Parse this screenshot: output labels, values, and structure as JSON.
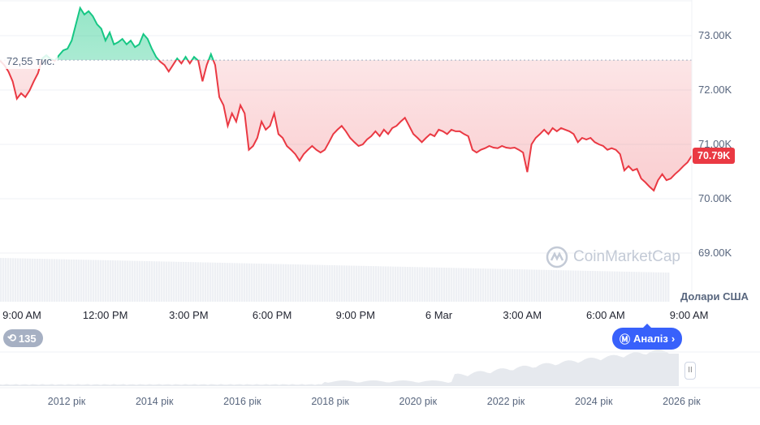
{
  "chart_data": {
    "type": "line",
    "baseline": 72.55,
    "baseline_label": "72,55 тис.",
    "current_price_label": "70.79K",
    "y_ticks": [
      {
        "v": 73,
        "label": "73.00K"
      },
      {
        "v": 72,
        "label": "72.00K"
      },
      {
        "v": 71,
        "label": "71.00K"
      },
      {
        "v": 70,
        "label": "70.00K"
      },
      {
        "v": 69,
        "label": "69.00K"
      }
    ],
    "ylim": [
      68.9,
      73.6
    ],
    "x_ticks": [
      "9:00 AM",
      "12:00 PM",
      "3:00 PM",
      "6:00 PM",
      "9:00 PM",
      "6 Mar",
      "3:00 AM",
      "6:00 AM",
      "9:00 AM"
    ],
    "unit_label": "Долари США",
    "grid": true,
    "colors": {
      "up": "#16c784",
      "down": "#ea3943"
    },
    "prices": [
      72.54,
      72.46,
      72.34,
      72.16,
      71.84,
      71.94,
      71.87,
      71.99,
      72.16,
      72.31,
      72.58,
      72.64,
      72.57,
      72.54,
      72.64,
      72.73,
      72.76,
      72.91,
      73.21,
      73.51,
      73.39,
      73.45,
      73.36,
      73.21,
      73.13,
      72.91,
      73.06,
      72.84,
      72.88,
      72.94,
      72.84,
      72.91,
      72.79,
      72.84,
      73.03,
      72.94,
      72.76,
      72.61,
      72.52,
      72.46,
      72.34,
      72.46,
      72.58,
      72.49,
      72.61,
      72.49,
      72.61,
      72.54,
      72.16,
      72.46,
      72.66,
      72.46,
      71.87,
      71.72,
      71.34,
      71.57,
      71.42,
      71.72,
      71.57,
      70.9,
      70.97,
      71.12,
      71.42,
      71.27,
      71.34,
      71.57,
      71.19,
      71.12,
      70.97,
      70.9,
      70.82,
      70.7,
      70.82,
      70.9,
      70.97,
      70.9,
      70.85,
      70.9,
      71.04,
      71.19,
      71.27,
      71.34,
      71.24,
      71.12,
      71.04,
      70.97,
      71.0,
      71.09,
      71.15,
      71.24,
      71.15,
      71.27,
      71.19,
      71.3,
      71.34,
      71.42,
      71.49,
      71.34,
      71.19,
      71.12,
      71.04,
      71.12,
      71.19,
      71.15,
      71.27,
      71.24,
      71.19,
      71.27,
      71.24,
      71.24,
      71.19,
      71.15,
      70.9,
      70.85,
      70.9,
      70.93,
      70.97,
      70.94,
      70.93,
      70.97,
      70.94,
      70.93,
      70.94,
      70.9,
      70.85,
      70.49,
      71.0,
      71.12,
      71.19,
      71.27,
      71.19,
      71.3,
      71.24,
      71.3,
      71.27,
      71.24,
      71.19,
      71.04,
      71.12,
      71.09,
      71.12,
      71.04,
      71.0,
      70.97,
      70.9,
      70.93,
      70.9,
      70.82,
      70.52,
      70.6,
      70.52,
      70.55,
      70.37,
      70.3,
      70.22,
      70.15,
      70.34,
      70.45,
      70.34,
      70.37,
      70.45,
      70.52,
      70.6,
      70.67,
      70.79
    ]
  },
  "navigator": {
    "years": [
      "2012 рік",
      "2014 рік",
      "2016 рік",
      "2018 рік",
      "2020 рік",
      "2022 рік",
      "2024 рік",
      "2026 рік"
    ]
  },
  "watermark": "CoinMarketCap",
  "history_count": "135",
  "analysis_button": "Аналіз"
}
